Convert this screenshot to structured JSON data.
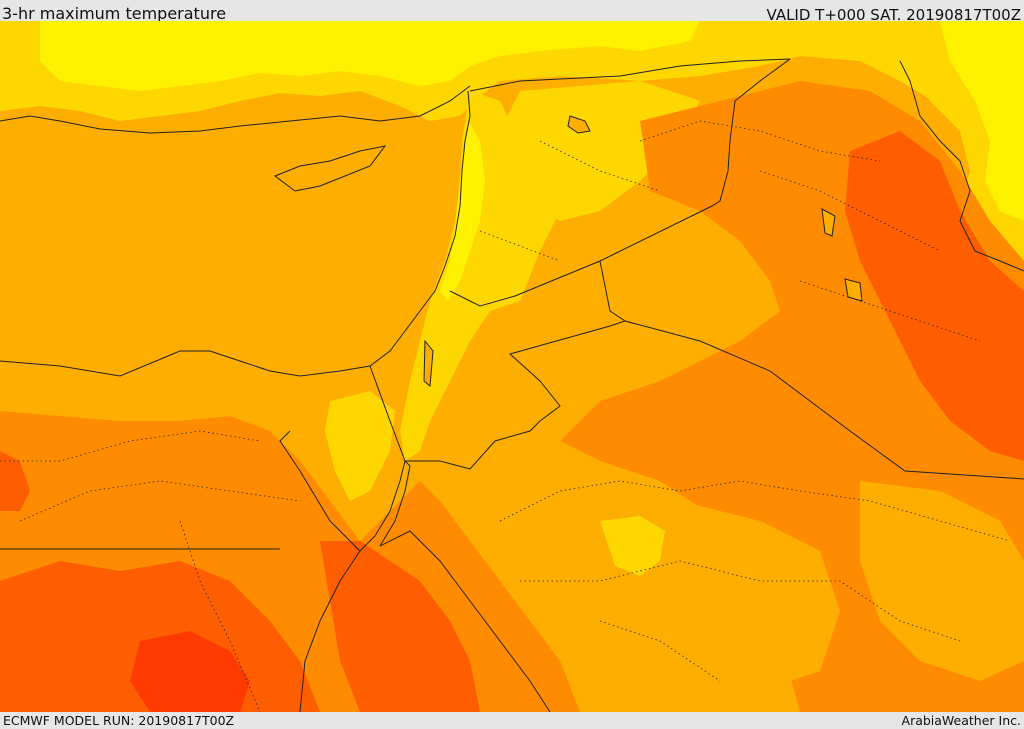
{
  "header": {
    "title": "3-hr maximum temperature",
    "valid": "VALID T+000 SAT. 20190817T00Z"
  },
  "footer": {
    "model_run": "ECMWF MODEL RUN: 20190817T00Z",
    "credit": "ArabiaWeather Inc."
  },
  "palette": {
    "light_yellow": "#fff200",
    "yellow": "#ffd700",
    "orange": "#fdae00",
    "dark_orange": "#ff8c00",
    "red_orange": "#ff5e00",
    "red": "#ff3a00",
    "border": "#222222"
  },
  "map": {
    "field": "3-hr maximum temperature",
    "region": "Eastern Mediterranean and Middle East"
  }
}
